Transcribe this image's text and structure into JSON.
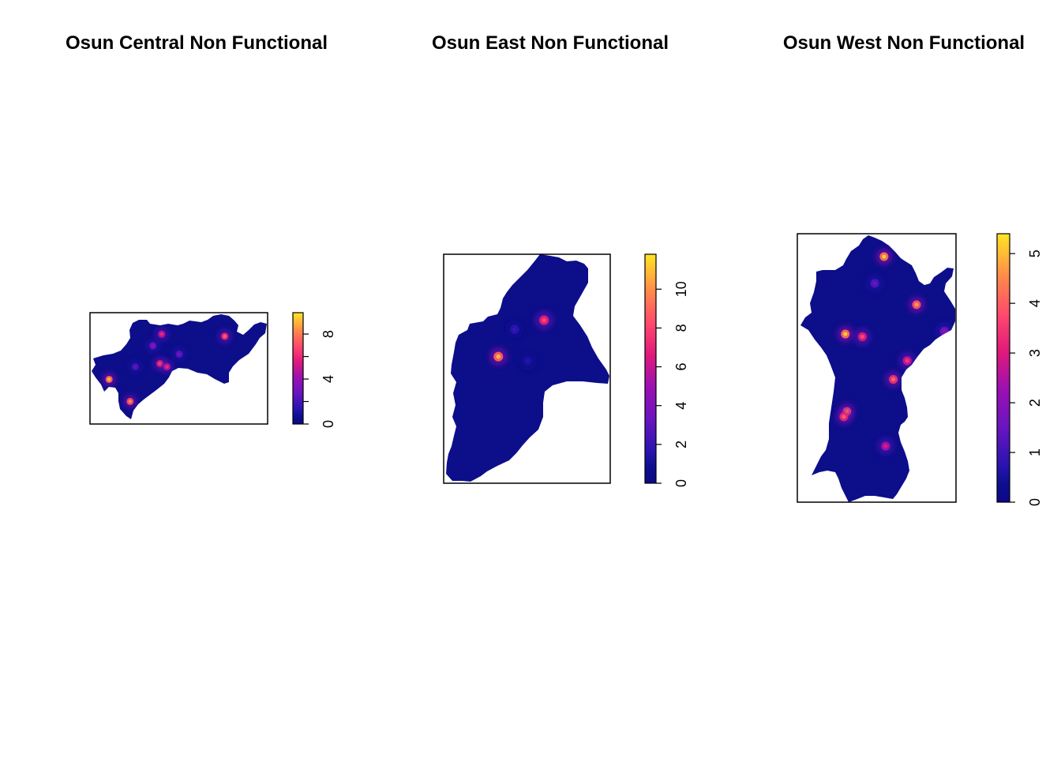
{
  "chart_data": [
    {
      "type": "heatmap",
      "title": "Osun Central Non Functional",
      "zlim": [
        0,
        9.9
      ],
      "legend_ticks": [
        0,
        2,
        4,
        6,
        8
      ],
      "legend_tick_labels": [
        "0",
        "4",
        "8"
      ],
      "axes": false,
      "hotspots": [
        {
          "value": 8.5,
          "region_fraction": [
            0.22,
            0.83
          ]
        },
        {
          "value": 9.3,
          "region_fraction": [
            0.1,
            0.62
          ]
        },
        {
          "value": 7.0,
          "region_fraction": [
            0.39,
            0.47
          ]
        },
        {
          "value": 6.0,
          "region_fraction": [
            0.43,
            0.5
          ]
        },
        {
          "value": 7.5,
          "region_fraction": [
            0.76,
            0.21
          ]
        },
        {
          "value": 6.0,
          "region_fraction": [
            0.4,
            0.19
          ]
        },
        {
          "value": 3.0,
          "region_fraction": [
            0.5,
            0.38
          ]
        },
        {
          "value": 3.5,
          "region_fraction": [
            0.35,
            0.3
          ]
        },
        {
          "value": 2.5,
          "region_fraction": [
            0.25,
            0.5
          ]
        }
      ]
    },
    {
      "type": "heatmap",
      "title": "Osun East Non Functional",
      "zlim": [
        0,
        11.8
      ],
      "legend_ticks": [
        0,
        2,
        4,
        6,
        8,
        10
      ],
      "legend_tick_labels": [
        "0",
        "2",
        "4",
        "6",
        "8",
        "10"
      ],
      "axes": false,
      "hotspots": [
        {
          "value": 11.0,
          "region_fraction": [
            0.32,
            0.45
          ]
        },
        {
          "value": 8.5,
          "region_fraction": [
            0.6,
            0.29
          ]
        },
        {
          "value": 2.0,
          "region_fraction": [
            0.42,
            0.33
          ]
        },
        {
          "value": 1.5,
          "region_fraction": [
            0.5,
            0.47
          ]
        }
      ]
    },
    {
      "type": "heatmap",
      "title": "Osun West Non Functional",
      "zlim": [
        0,
        5.4
      ],
      "legend_ticks": [
        0,
        1,
        2,
        3,
        4,
        5
      ],
      "legend_tick_labels": [
        "0",
        "1",
        "2",
        "3",
        "4",
        "5"
      ],
      "axes": false,
      "hotspots": [
        {
          "value": 5.3,
          "region_fraction": [
            0.54,
            0.08
          ]
        },
        {
          "value": 4.8,
          "region_fraction": [
            0.75,
            0.26
          ]
        },
        {
          "value": 5.2,
          "region_fraction": [
            0.29,
            0.37
          ]
        },
        {
          "value": 3.8,
          "region_fraction": [
            0.4,
            0.38
          ]
        },
        {
          "value": 3.5,
          "region_fraction": [
            0.69,
            0.47
          ]
        },
        {
          "value": 4.2,
          "region_fraction": [
            0.6,
            0.54
          ]
        },
        {
          "value": 4.5,
          "region_fraction": [
            0.3,
            0.66
          ]
        },
        {
          "value": 4.0,
          "region_fraction": [
            0.28,
            0.68
          ]
        },
        {
          "value": 3.0,
          "region_fraction": [
            0.55,
            0.79
          ]
        },
        {
          "value": 1.5,
          "region_fraction": [
            0.48,
            0.18
          ]
        },
        {
          "value": 2.0,
          "region_fraction": [
            0.93,
            0.36
          ]
        }
      ]
    }
  ]
}
